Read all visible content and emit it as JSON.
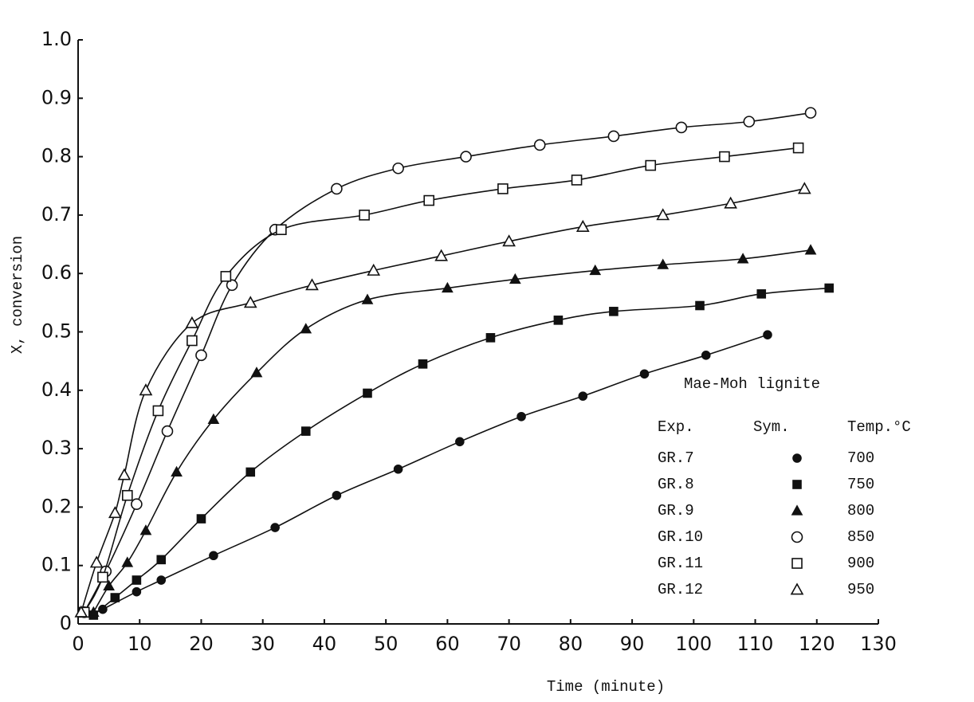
{
  "chart_data": {
    "type": "scatter",
    "xlabel": "Time (minute)",
    "ylabel": "X, conversion",
    "xlim": [
      0,
      130
    ],
    "ylim": [
      0,
      1
    ],
    "xticks": [
      0,
      10,
      20,
      30,
      40,
      50,
      60,
      70,
      80,
      90,
      100,
      110,
      120,
      130
    ],
    "yticks": [
      0,
      0.1,
      0.2,
      0.3,
      0.4,
      0.5,
      0.6,
      0.7,
      0.8,
      0.9,
      {
        "value": 1,
        "label": "1.0"
      }
    ],
    "color": "#111111",
    "legend": {
      "title": "Mae-Moh lignite",
      "headers": [
        "Exp.",
        "Sym.",
        "Temp.°C"
      ]
    },
    "series": [
      {
        "name": "GR.7",
        "temp": 700,
        "marker": "circle-filled",
        "x": [
          4,
          9.5,
          13.5,
          22,
          32,
          42,
          52,
          62,
          72,
          82,
          92,
          102,
          112
        ],
        "values": [
          0.025,
          0.055,
          0.075,
          0.117,
          0.165,
          0.22,
          0.265,
          0.312,
          0.355,
          0.39,
          0.428,
          0.46,
          0.495
        ]
      },
      {
        "name": "GR.8",
        "temp": 750,
        "marker": "square-filled",
        "x": [
          2.5,
          6,
          9.5,
          13.5,
          20,
          28,
          37,
          47,
          56,
          67,
          78,
          87,
          101,
          111,
          122
        ],
        "values": [
          0.015,
          0.045,
          0.075,
          0.11,
          0.18,
          0.26,
          0.33,
          0.395,
          0.445,
          0.49,
          0.52,
          0.535,
          0.545,
          0.565,
          0.575
        ]
      },
      {
        "name": "GR.9",
        "temp": 800,
        "marker": "triangle-filled",
        "x": [
          2.5,
          5,
          8,
          11,
          16,
          22,
          29,
          37,
          47,
          60,
          71,
          84,
          95,
          108,
          119
        ],
        "values": [
          0.02,
          0.065,
          0.105,
          0.16,
          0.26,
          0.35,
          0.43,
          0.505,
          0.555,
          0.575,
          0.59,
          0.605,
          0.615,
          0.625,
          0.64
        ]
      },
      {
        "name": "GR.10",
        "temp": 850,
        "marker": "circle-open",
        "x": [
          1,
          4.5,
          9.5,
          14.5,
          20,
          25,
          32,
          42,
          52,
          63,
          75,
          87,
          98,
          109,
          119
        ],
        "values": [
          0.02,
          0.09,
          0.205,
          0.33,
          0.46,
          0.58,
          0.675,
          0.745,
          0.78,
          0.8,
          0.82,
          0.835,
          0.85,
          0.86,
          0.875
        ]
      },
      {
        "name": "GR.11",
        "temp": 900,
        "marker": "square-open",
        "x": [
          1,
          4,
          8,
          13,
          18.5,
          24,
          33,
          46.5,
          57,
          69,
          81,
          93,
          105,
          117
        ],
        "values": [
          0.02,
          0.08,
          0.22,
          0.365,
          0.485,
          0.595,
          0.675,
          0.7,
          0.725,
          0.745,
          0.76,
          0.785,
          0.8,
          0.815
        ]
      },
      {
        "name": "GR.12",
        "temp": 950,
        "marker": "triangle-open",
        "x": [
          0.5,
          3,
          6,
          7.5,
          11,
          18.5,
          28,
          38,
          48,
          59,
          70,
          82,
          95,
          106,
          118
        ],
        "values": [
          0.02,
          0.105,
          0.19,
          0.255,
          0.4,
          0.515,
          0.55,
          0.58,
          0.605,
          0.63,
          0.655,
          0.68,
          0.7,
          0.72,
          0.745
        ]
      }
    ]
  }
}
